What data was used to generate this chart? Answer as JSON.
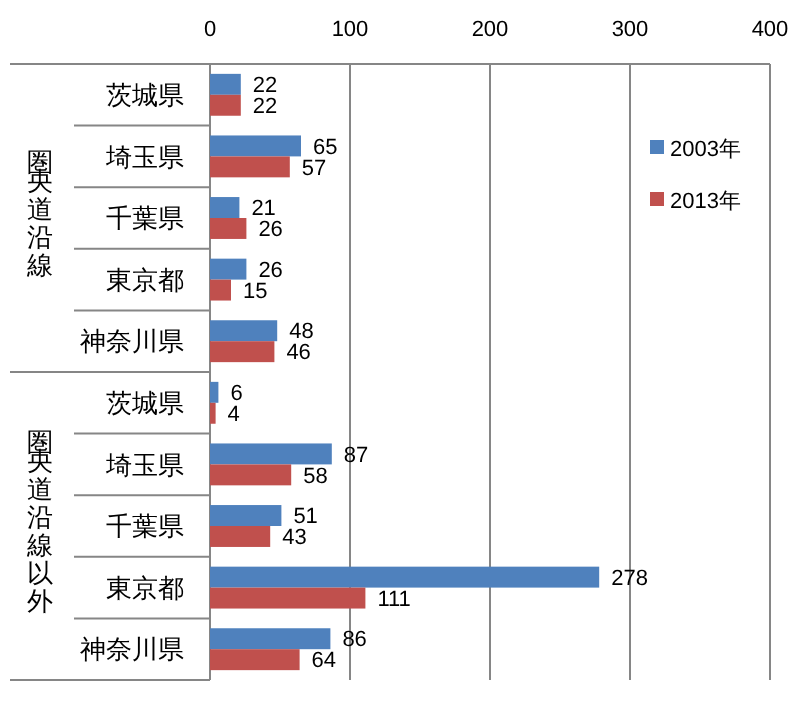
{
  "chart_data": {
    "type": "bar",
    "orientation": "horizontal",
    "categories": [
      "茨城県",
      "埼玉県",
      "千葉県",
      "東京都",
      "神奈川県",
      "茨城県",
      "埼玉県",
      "千葉県",
      "東京都",
      "神奈川県"
    ],
    "series": [
      {
        "name": "2003年",
        "color": "#4f81bd",
        "values": [
          22,
          65,
          21,
          26,
          48,
          6,
          87,
          51,
          278,
          86
        ]
      },
      {
        "name": "2013年",
        "color": "#c0504d",
        "values": [
          22,
          57,
          26,
          15,
          46,
          4,
          58,
          43,
          111,
          64
        ]
      }
    ],
    "xlim": [
      0,
      400
    ],
    "xticks": [
      0,
      100,
      200,
      300,
      400
    ],
    "grid": "x",
    "legend": "right",
    "data_labels": true,
    "annotations": [
      "圏央道沿線",
      "圏央道沿線以外"
    ]
  }
}
